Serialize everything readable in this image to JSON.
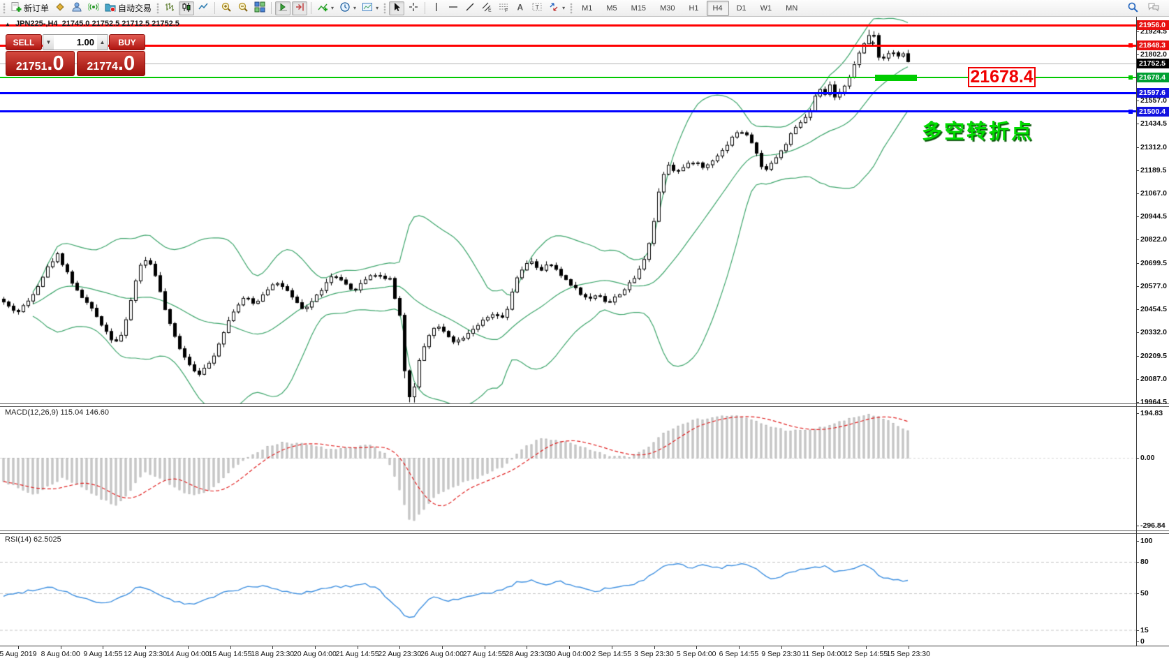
{
  "toolbar": {
    "new_order_label": "新订单",
    "autotrading_label": "自动交易",
    "timeframes": [
      "M1",
      "M5",
      "M15",
      "M30",
      "H1",
      "H4",
      "D1",
      "W1",
      "MN"
    ],
    "active_timeframe": "H4"
  },
  "chart": {
    "symbol_period": "JPN225-,H4",
    "ohlc_text": "21745.0 21752.5 21712.5 21752.5"
  },
  "one_click": {
    "sell_label": "SELL",
    "buy_label": "BUY",
    "volume": "1.00",
    "sell_price": {
      "main": "21751",
      "frac": ".0"
    },
    "buy_price": {
      "main": "21774",
      "frac": ".0"
    }
  },
  "annotations": {
    "price_flag": "21678.4",
    "turning_point": "多空转折点",
    "peak_marker": "+"
  },
  "price_axis": {
    "plain_ticks": [
      21924.5,
      21802.0,
      21557.0,
      21434.5,
      21312.0,
      21189.5,
      21067.0,
      20944.5,
      20822.0,
      20699.5,
      20577.0,
      20454.5,
      20332.0,
      20209.5,
      20087.0,
      19964.5
    ],
    "badges": [
      {
        "label": "21956.0",
        "price": 21956.0,
        "bg": "#e81010"
      },
      {
        "label": "21848.3",
        "price": 21848.3,
        "bg": "#e81010"
      },
      {
        "label": "21752.5",
        "price": 21752.5,
        "bg": "#000000"
      },
      {
        "label": "21678.4",
        "price": 21678.4,
        "bg": "#00a032"
      },
      {
        "label": "21597.6",
        "price": 21597.6,
        "bg": "#1212e0"
      },
      {
        "label": "21500.4",
        "price": 21500.4,
        "bg": "#1212e0"
      }
    ]
  },
  "indicators": {
    "macd_label": "MACD(12,26,9) 115.04 146.60",
    "macd_axis": [
      {
        "label": "194.83",
        "value": 194.83
      },
      {
        "label": "0.00",
        "value": 0
      },
      {
        "label": "-296.84",
        "value": -296.84
      }
    ],
    "rsi_label": "RSI(14) 62.5025",
    "rsi_axis": [
      {
        "label": "100",
        "value": 100
      },
      {
        "label": "80",
        "value": 80
      },
      {
        "label": "50",
        "value": 50
      },
      {
        "label": "15",
        "value": 15
      },
      {
        "label": "0",
        "value": 0
      }
    ]
  },
  "time_axis": {
    "labels": [
      "5 Aug 2019",
      "8 Aug 04:00",
      "9 Aug 14:55",
      "12 Aug 23:30",
      "14 Aug 04:00",
      "15 Aug 14:55",
      "18 Aug 23:30",
      "20 Aug 04:00",
      "21 Aug 14:55",
      "22 Aug 23:30",
      "26 Aug 04:00",
      "27 Aug 14:55",
      "28 Aug 23:30",
      "30 Aug 04:00",
      "2 Sep 14:55",
      "3 Sep 23:30",
      "5 Sep 04:00",
      "6 Sep 14:55",
      "9 Sep 23:30",
      "11 Sep 04:00",
      "12 Sep 14:55",
      "15 Sep 23:30"
    ]
  },
  "chart_data": {
    "type": "candlestick+indicators",
    "symbol": "JPN225-",
    "timeframe": "H4",
    "ohlc_header": {
      "open": 21745.0,
      "high": 21752.5,
      "low": 21712.5,
      "close": 21752.5
    },
    "bid": 21751.0,
    "ask": 21774.0,
    "y_range_main": [
      19964.5,
      21956.0
    ],
    "bollinger": {
      "period": 20,
      "deviation": 2.2,
      "color": "#3da56b"
    },
    "hlines": [
      {
        "price": 21956.0,
        "color": "#ff0000",
        "thickness": 3,
        "handle": false
      },
      {
        "price": 21848.3,
        "color": "#ff0000",
        "thickness": 3,
        "handle": true
      },
      {
        "price": 21752.5,
        "color": "#b4b4b4",
        "thickness": 1,
        "handle": false,
        "role": "current-price"
      },
      {
        "price": 21678.4,
        "color": "#00c800",
        "thickness": 2,
        "handle": true,
        "highlight_segment": true
      },
      {
        "price": 21597.6,
        "color": "#0000ff",
        "thickness": 3,
        "handle": false
      },
      {
        "price": 21500.4,
        "color": "#0000ff",
        "thickness": 3,
        "handle": true
      }
    ],
    "price_path": [
      [
        0,
        20510
      ],
      [
        12,
        20470
      ],
      [
        25,
        20440
      ],
      [
        40,
        20500
      ],
      [
        55,
        20590
      ],
      [
        70,
        20690
      ],
      [
        82,
        20745
      ],
      [
        95,
        20660
      ],
      [
        108,
        20560
      ],
      [
        122,
        20500
      ],
      [
        136,
        20430
      ],
      [
        150,
        20350
      ],
      [
        163,
        20280
      ],
      [
        176,
        20330
      ],
      [
        188,
        20520
      ],
      [
        200,
        20690
      ],
      [
        212,
        20720
      ],
      [
        222,
        20640
      ],
      [
        233,
        20490
      ],
      [
        245,
        20350
      ],
      [
        258,
        20245
      ],
      [
        270,
        20170
      ],
      [
        283,
        20115
      ],
      [
        296,
        20150
      ],
      [
        308,
        20230
      ],
      [
        321,
        20350
      ],
      [
        335,
        20455
      ],
      [
        350,
        20520
      ],
      [
        364,
        20480
      ],
      [
        378,
        20545
      ],
      [
        392,
        20600
      ],
      [
        406,
        20575
      ],
      [
        420,
        20505
      ],
      [
        434,
        20450
      ],
      [
        448,
        20505
      ],
      [
        462,
        20570
      ],
      [
        476,
        20635
      ],
      [
        490,
        20600
      ],
      [
        504,
        20550
      ],
      [
        518,
        20595
      ],
      [
        532,
        20645
      ],
      [
        546,
        20625
      ],
      [
        558,
        20620
      ],
      [
        566,
        20500
      ],
      [
        572,
        20430
      ],
      [
        578,
        20150
      ],
      [
        586,
        19995
      ],
      [
        594,
        20060
      ],
      [
        602,
        20220
      ],
      [
        612,
        20310
      ],
      [
        624,
        20370
      ],
      [
        638,
        20330
      ],
      [
        652,
        20280
      ],
      [
        666,
        20320
      ],
      [
        680,
        20365
      ],
      [
        694,
        20400
      ],
      [
        708,
        20430
      ],
      [
        722,
        20400
      ],
      [
        736,
        20590
      ],
      [
        748,
        20670
      ],
      [
        760,
        20715
      ],
      [
        774,
        20655
      ],
      [
        786,
        20700
      ],
      [
        800,
        20645
      ],
      [
        814,
        20600
      ],
      [
        828,
        20550
      ],
      [
        842,
        20505
      ],
      [
        856,
        20540
      ],
      [
        870,
        20485
      ],
      [
        884,
        20530
      ],
      [
        898,
        20575
      ],
      [
        912,
        20640
      ],
      [
        925,
        20750
      ],
      [
        935,
        20900
      ],
      [
        945,
        21120
      ],
      [
        955,
        21230
      ],
      [
        968,
        21180
      ],
      [
        980,
        21210
      ],
      [
        994,
        21240
      ],
      [
        1008,
        21200
      ],
      [
        1022,
        21255
      ],
      [
        1036,
        21300
      ],
      [
        1050,
        21380
      ],
      [
        1064,
        21395
      ],
      [
        1078,
        21330
      ],
      [
        1092,
        21185
      ],
      [
        1106,
        21235
      ],
      [
        1120,
        21300
      ],
      [
        1134,
        21390
      ],
      [
        1148,
        21450
      ],
      [
        1160,
        21500
      ],
      [
        1165,
        21560
      ],
      [
        1172,
        21620
      ],
      [
        1180,
        21585
      ],
      [
        1188,
        21640
      ],
      [
        1196,
        21560
      ],
      [
        1204,
        21610
      ],
      [
        1212,
        21660
      ],
      [
        1220,
        21720
      ],
      [
        1228,
        21790
      ],
      [
        1236,
        21850
      ],
      [
        1244,
        21905
      ],
      [
        1250,
        21930
      ],
      [
        1256,
        21800
      ],
      [
        1262,
        21770
      ],
      [
        1268,
        21800
      ],
      [
        1276,
        21830
      ],
      [
        1284,
        21790
      ],
      [
        1292,
        21810
      ],
      [
        1302,
        21752.5
      ]
    ],
    "macd": {
      "current_macd": 115.04,
      "current_signal": 146.6,
      "y_range": [
        -296.84,
        194.83
      ],
      "path": [
        [
          0,
          -90
        ],
        [
          25,
          -130
        ],
        [
          50,
          -160
        ],
        [
          70,
          -120
        ],
        [
          90,
          -85
        ],
        [
          115,
          -120
        ],
        [
          140,
          -170
        ],
        [
          165,
          -205
        ],
        [
          185,
          -150
        ],
        [
          205,
          -60
        ],
        [
          230,
          -90
        ],
        [
          255,
          -140
        ],
        [
          280,
          -160
        ],
        [
          305,
          -130
        ],
        [
          330,
          -55
        ],
        [
          355,
          5
        ],
        [
          380,
          45
        ],
        [
          405,
          70
        ],
        [
          430,
          62
        ],
        [
          455,
          48
        ],
        [
          480,
          36
        ],
        [
          505,
          44
        ],
        [
          530,
          56
        ],
        [
          552,
          20
        ],
        [
          570,
          -120
        ],
        [
          588,
          -290
        ],
        [
          605,
          -230
        ],
        [
          625,
          -160
        ],
        [
          650,
          -120
        ],
        [
          675,
          -95
        ],
        [
          700,
          -65
        ],
        [
          725,
          -30
        ],
        [
          750,
          45
        ],
        [
          775,
          85
        ],
        [
          800,
          78
        ],
        [
          825,
          55
        ],
        [
          850,
          28
        ],
        [
          875,
          8
        ],
        [
          900,
          4
        ],
        [
          925,
          40
        ],
        [
          950,
          110
        ],
        [
          975,
          150
        ],
        [
          1000,
          168
        ],
        [
          1025,
          180
        ],
        [
          1050,
          186
        ],
        [
          1075,
          168
        ],
        [
          1100,
          140
        ],
        [
          1125,
          122
        ],
        [
          1150,
          118
        ],
        [
          1175,
          132
        ],
        [
          1200,
          155
        ],
        [
          1225,
          178
        ],
        [
          1245,
          192
        ],
        [
          1265,
          170
        ],
        [
          1285,
          140
        ],
        [
          1302,
          115
        ]
      ]
    },
    "rsi": {
      "current": 62.5025,
      "levels": [
        80,
        50,
        15
      ],
      "y_range": [
        0,
        100
      ],
      "path": [
        [
          0,
          47
        ],
        [
          25,
          50
        ],
        [
          50,
          54
        ],
        [
          75,
          56
        ],
        [
          100,
          50
        ],
        [
          125,
          44
        ],
        [
          150,
          40
        ],
        [
          175,
          46
        ],
        [
          200,
          57
        ],
        [
          225,
          50
        ],
        [
          250,
          42
        ],
        [
          275,
          39
        ],
        [
          300,
          45
        ],
        [
          325,
          52
        ],
        [
          350,
          55
        ],
        [
          375,
          57
        ],
        [
          400,
          53
        ],
        [
          425,
          49
        ],
        [
          450,
          53
        ],
        [
          475,
          56
        ],
        [
          500,
          57
        ],
        [
          525,
          59
        ],
        [
          545,
          52
        ],
        [
          565,
          38
        ],
        [
          580,
          29
        ],
        [
          592,
          27
        ],
        [
          605,
          38
        ],
        [
          620,
          47
        ],
        [
          645,
          43
        ],
        [
          670,
          46
        ],
        [
          695,
          50
        ],
        [
          720,
          53
        ],
        [
          740,
          60
        ],
        [
          760,
          63
        ],
        [
          780,
          58
        ],
        [
          800,
          62
        ],
        [
          825,
          56
        ],
        [
          850,
          52
        ],
        [
          875,
          55
        ],
        [
          900,
          57
        ],
        [
          920,
          62
        ],
        [
          940,
          70
        ],
        [
          955,
          77
        ],
        [
          970,
          79
        ],
        [
          985,
          74
        ],
        [
          1000,
          76
        ],
        [
          1015,
          77
        ],
        [
          1030,
          74
        ],
        [
          1045,
          76
        ],
        [
          1060,
          78
        ],
        [
          1075,
          75
        ],
        [
          1090,
          70
        ],
        [
          1105,
          64
        ],
        [
          1120,
          67
        ],
        [
          1135,
          71
        ],
        [
          1150,
          73
        ],
        [
          1165,
          75
        ],
        [
          1180,
          76
        ],
        [
          1195,
          71
        ],
        [
          1210,
          73
        ],
        [
          1225,
          75
        ],
        [
          1240,
          77
        ],
        [
          1250,
          72
        ],
        [
          1260,
          66
        ],
        [
          1275,
          63
        ],
        [
          1290,
          62
        ],
        [
          1302,
          62.5
        ]
      ]
    },
    "colors": {
      "bull": "#ffffff",
      "bear": "#000000",
      "wick": "#000000",
      "band": "#3da56b",
      "histogram": "#d6d6d6",
      "macd_signal": "#e02020",
      "rsi_line": "#3d8fe0"
    }
  }
}
